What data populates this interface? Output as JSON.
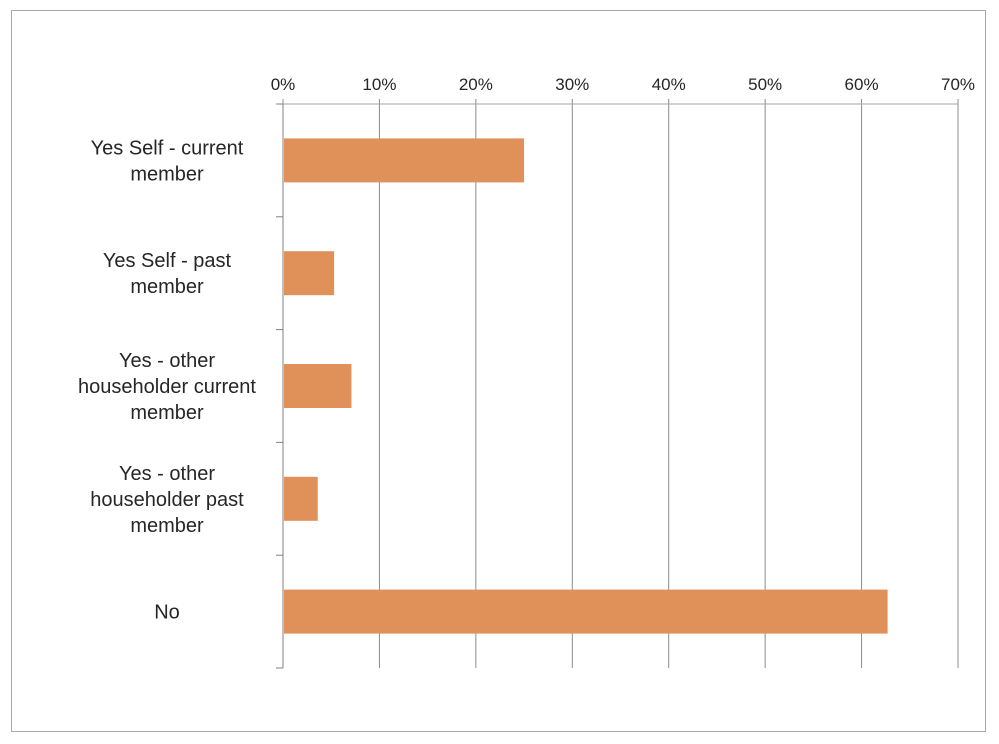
{
  "chart_data": {
    "type": "bar",
    "orientation": "horizontal",
    "categories": [
      [
        "Yes Self - current",
        "member"
      ],
      [
        "Yes Self - past",
        "member"
      ],
      [
        "Yes - other",
        "householder current",
        "member"
      ],
      [
        "Yes - other",
        "householder past",
        "member"
      ],
      [
        "No"
      ]
    ],
    "values": [
      25,
      5.3,
      7.1,
      3.6,
      62.7
    ],
    "xlim": [
      0,
      70
    ],
    "xticks": [
      "0%",
      "10%",
      "20%",
      "30%",
      "40%",
      "50%",
      "60%",
      "70%"
    ],
    "x_axis_position": "top",
    "grid": true,
    "bar_color": "#e0915a"
  }
}
